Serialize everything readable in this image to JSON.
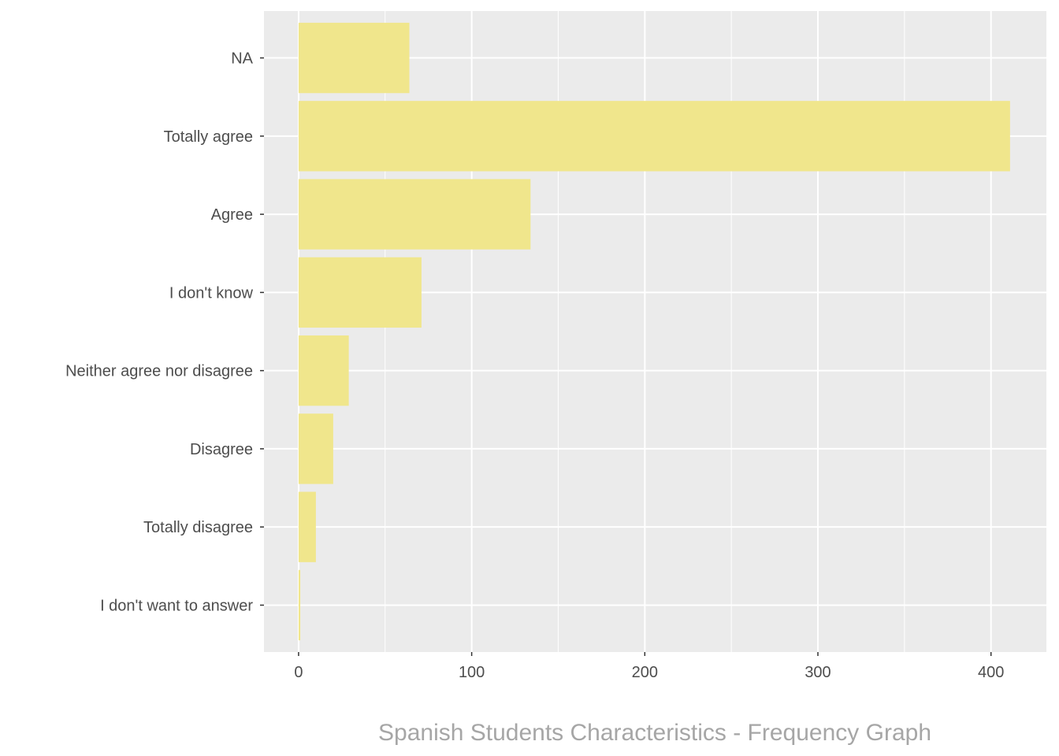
{
  "chart_data": {
    "type": "bar",
    "orientation": "horizontal",
    "title": "Spanish Students Characteristics - Frequency Graph",
    "title_position": "bottom",
    "xlabel": "",
    "ylabel": "",
    "categories": [
      "NA",
      "Totally agree",
      "Agree",
      "I don't know",
      "Neither agree nor disagree",
      "Disagree",
      "Totally disagree",
      "I don't want to answer"
    ],
    "values": [
      64,
      411,
      134,
      71,
      29,
      20,
      10,
      1
    ],
    "xlim": [
      -20,
      432
    ],
    "x_ticks": [
      0,
      100,
      200,
      300,
      400
    ],
    "x_tick_labels": [
      "0",
      "100",
      "200",
      "300",
      "400"
    ],
    "grid": true,
    "legend": "none",
    "colors": {
      "bar": "#F0E68C",
      "panel": "#EBEBEB",
      "grid": "#FFFFFF",
      "text": "#4D4D4D",
      "title": "#A6A6A6"
    }
  }
}
